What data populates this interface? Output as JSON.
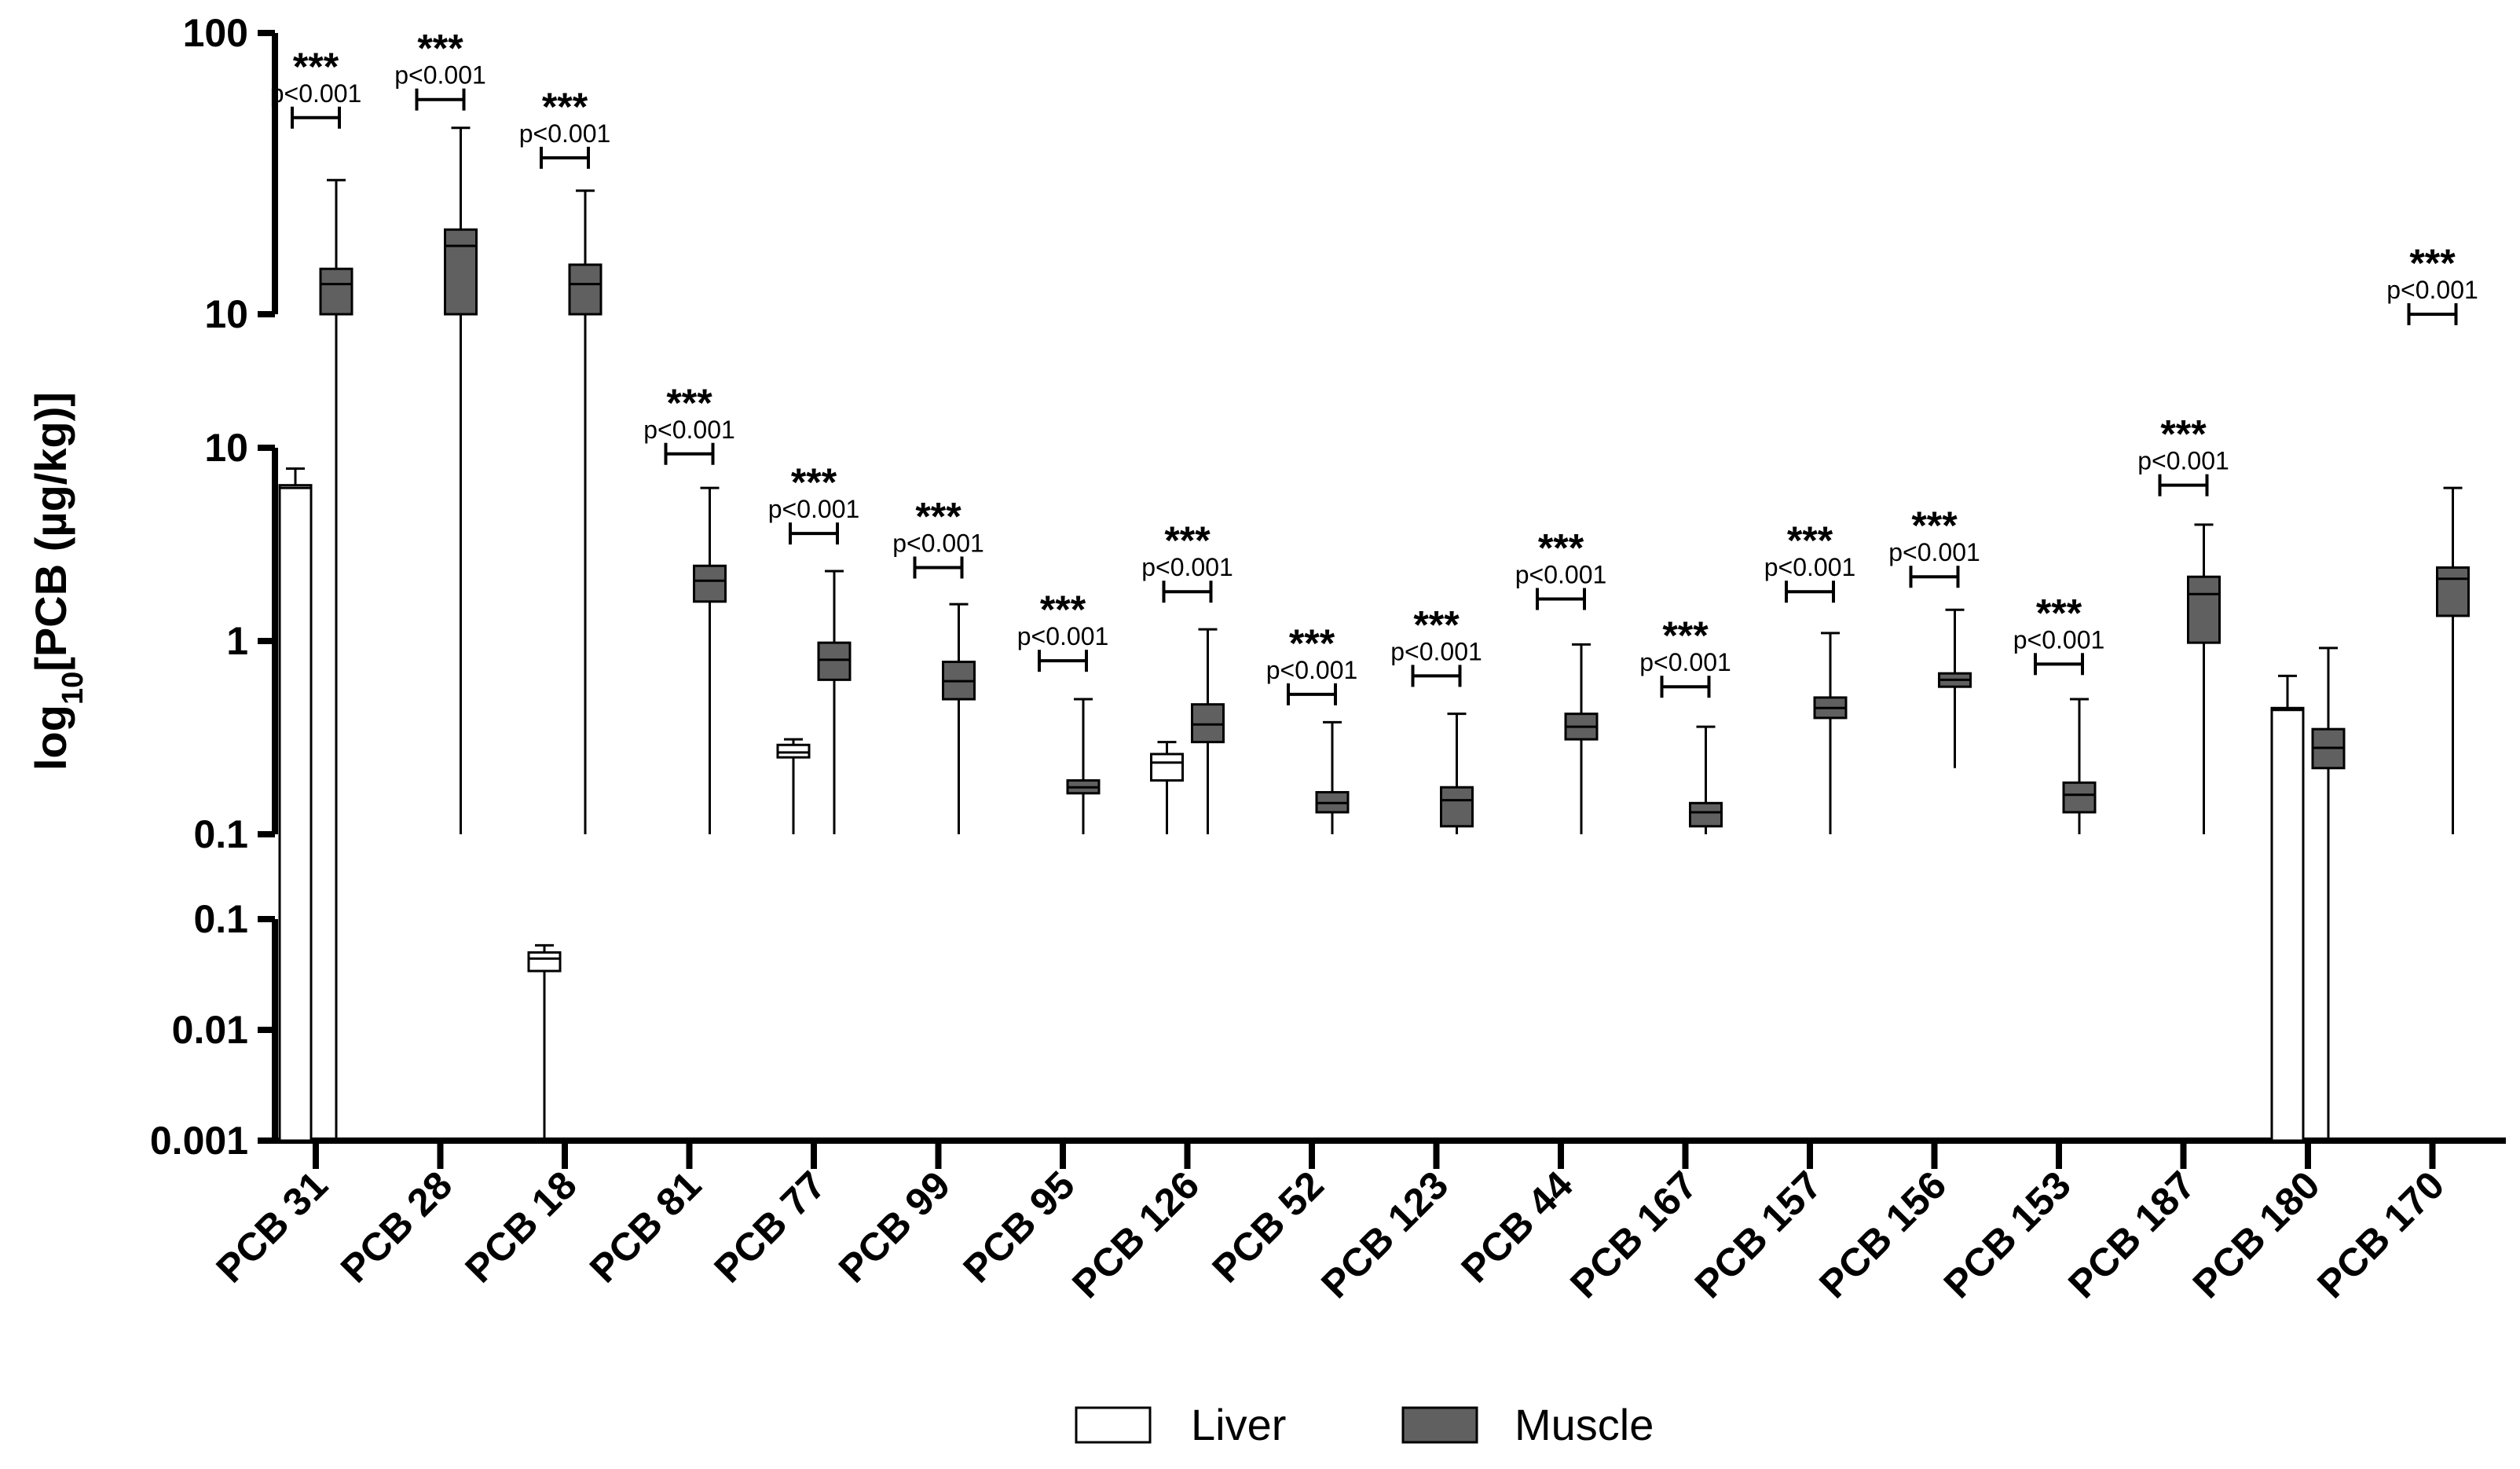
{
  "chart_data": {
    "type": "boxplot",
    "ylabel": "log10[PCB (µg/kg)]",
    "ylabel_main": "log",
    "ylabel_sub": "10",
    "ylabel_rest": "[PCB (µg/kg)]",
    "yscale": "log",
    "segments": [
      {
        "name": "upper",
        "range": [
          10,
          100
        ],
        "ticks": [
          "10",
          "100"
        ],
        "tick_values": [
          10,
          100
        ]
      },
      {
        "name": "middle",
        "range": [
          0.1,
          10
        ],
        "ticks": [
          "0.1",
          "1",
          "10"
        ],
        "tick_values": [
          0.1,
          1,
          10
        ]
      },
      {
        "name": "lower",
        "range": [
          0.001,
          0.1
        ],
        "ticks": [
          "0.001",
          "0.01",
          "0.1"
        ],
        "tick_values": [
          0.001,
          0.01,
          0.1
        ]
      }
    ],
    "categories": [
      "PCB 31",
      "PCB 28",
      "PCB 18",
      "PCB 81",
      "PCB 77",
      "PCB 99",
      "PCB 95",
      "PCB 126",
      "PCB 52",
      "PCB 123",
      "PCB 44",
      "PCB 167",
      "PCB 157",
      "PCB 156",
      "PCB 153",
      "PCB 187",
      "PCB 180",
      "PCB 170"
    ],
    "series": [
      {
        "name": "Liver",
        "color": "#ffffff",
        "boxes": [
          {
            "min": 0.001,
            "q1": 0.001,
            "median": 6.2,
            "q3": 6.4,
            "max": 7.8
          },
          {
            "min": 0.001,
            "q1": 0.001,
            "median": 0.001,
            "q3": 0.001,
            "max": 0.001
          },
          {
            "min": 0.001,
            "q1": 0.034,
            "median": 0.044,
            "q3": 0.05,
            "max": 0.058
          },
          {
            "min": 0.001,
            "q1": 0.001,
            "median": 0.001,
            "q3": 0.001,
            "max": 0.001
          },
          {
            "min": 0.1,
            "q1": 0.25,
            "median": 0.265,
            "q3": 0.29,
            "max": 0.31
          },
          {
            "min": 0.001,
            "q1": 0.001,
            "median": 0.001,
            "q3": 0.001,
            "max": 0.001
          },
          {
            "min": 0.001,
            "q1": 0.001,
            "median": 0.001,
            "q3": 0.001,
            "max": 0.001
          },
          {
            "min": 0.1,
            "q1": 0.19,
            "median": 0.235,
            "q3": 0.26,
            "max": 0.3
          },
          {
            "min": 0.001,
            "q1": 0.001,
            "median": 0.001,
            "q3": 0.001,
            "max": 0.001
          },
          {
            "min": 0.001,
            "q1": 0.001,
            "median": 0.001,
            "q3": 0.001,
            "max": 0.001
          },
          {
            "min": 0.001,
            "q1": 0.001,
            "median": 0.001,
            "q3": 0.001,
            "max": 0.001
          },
          {
            "min": 0.001,
            "q1": 0.001,
            "median": 0.001,
            "q3": 0.001,
            "max": 0.001
          },
          {
            "min": 0.001,
            "q1": 0.001,
            "median": 0.001,
            "q3": 0.001,
            "max": 0.001
          },
          {
            "min": 0.001,
            "q1": 0.001,
            "median": 0.001,
            "q3": 0.001,
            "max": 0.001
          },
          {
            "min": 0.001,
            "q1": 0.001,
            "median": 0.001,
            "q3": 0.001,
            "max": 0.001
          },
          {
            "min": 0.001,
            "q1": 0.001,
            "median": 0.001,
            "q3": 0.001,
            "max": 0.001
          },
          {
            "min": 0.001,
            "q1": 0.001,
            "median": 0.44,
            "q3": 0.45,
            "max": 0.66
          },
          {
            "min": 0.001,
            "q1": 0.001,
            "median": 0.001,
            "q3": 0.001,
            "max": 0.001
          }
        ]
      },
      {
        "name": "Muscle",
        "color": "#606060",
        "boxes": [
          {
            "min": 0.001,
            "q1": 10,
            "median": 12.8,
            "q3": 14.5,
            "max": 30
          },
          {
            "min": 0.1,
            "q1": 10,
            "median": 17.5,
            "q3": 20,
            "max": 46
          },
          {
            "min": 0.1,
            "q1": 10,
            "median": 12.8,
            "q3": 15,
            "max": 27.5
          },
          {
            "min": 0.1,
            "q1": 1.6,
            "median": 2.05,
            "q3": 2.45,
            "max": 6.2
          },
          {
            "min": 0.1,
            "q1": 0.63,
            "median": 0.8,
            "q3": 0.98,
            "max": 2.3
          },
          {
            "min": 0.1,
            "q1": 0.5,
            "median": 0.62,
            "q3": 0.78,
            "max": 1.55
          },
          {
            "min": 0.1,
            "q1": 0.163,
            "median": 0.175,
            "q3": 0.19,
            "max": 0.5
          },
          {
            "min": 0.1,
            "q1": 0.3,
            "median": 0.37,
            "q3": 0.47,
            "max": 1.15
          },
          {
            "min": 0.1,
            "q1": 0.13,
            "median": 0.145,
            "q3": 0.165,
            "max": 0.38
          },
          {
            "min": 0.1,
            "q1": 0.11,
            "median": 0.15,
            "q3": 0.175,
            "max": 0.42
          },
          {
            "min": 0.1,
            "q1": 0.31,
            "median": 0.36,
            "q3": 0.42,
            "max": 0.96
          },
          {
            "min": 0.1,
            "q1": 0.11,
            "median": 0.13,
            "q3": 0.145,
            "max": 0.36
          },
          {
            "min": 0.1,
            "q1": 0.4,
            "median": 0.45,
            "q3": 0.51,
            "max": 1.1
          },
          {
            "min": 0.22,
            "q1": 0.58,
            "median": 0.63,
            "q3": 0.68,
            "max": 1.45
          },
          {
            "min": 0.1,
            "q1": 0.13,
            "median": 0.16,
            "q3": 0.185,
            "max": 0.5
          },
          {
            "min": 0.1,
            "q1": 0.98,
            "median": 1.75,
            "q3": 2.15,
            "max": 4.0
          },
          {
            "min": 0.001,
            "q1": 0.22,
            "median": 0.28,
            "q3": 0.35,
            "max": 0.92
          },
          {
            "min": 0.1,
            "q1": 1.35,
            "median": 2.1,
            "q3": 2.4,
            "max": 6.2
          }
        ]
      }
    ],
    "annotations": [
      {
        "category": "PCB 31",
        "stars": "***",
        "p": "p<0.001",
        "y": 50
      },
      {
        "category": "PCB 28",
        "stars": "***",
        "p": "p<0.001",
        "y": 58
      },
      {
        "category": "PCB 18",
        "stars": "***",
        "p": "p<0.001",
        "y": 36
      },
      {
        "category": "PCB 81",
        "stars": "***",
        "p": "p<0.001",
        "y": 9.3
      },
      {
        "category": "PCB 77",
        "stars": "***",
        "p": "p<0.001",
        "y": 3.6
      },
      {
        "category": "PCB 99",
        "stars": "***",
        "p": "p<0.001",
        "y": 2.4
      },
      {
        "category": "PCB 95",
        "stars": "***",
        "p": "p<0.001",
        "y": 0.79
      },
      {
        "category": "PCB 126",
        "stars": "***",
        "p": "p<0.001",
        "y": 1.8
      },
      {
        "category": "PCB 52",
        "stars": "***",
        "p": "p<0.001",
        "y": 0.53
      },
      {
        "category": "PCB 123",
        "stars": "***",
        "p": "p<0.001",
        "y": 0.66
      },
      {
        "category": "PCB 44",
        "stars": "***",
        "p": "p<0.001",
        "y": 1.65
      },
      {
        "category": "PCB 167",
        "stars": "***",
        "p": "p<0.001",
        "y": 0.58
      },
      {
        "category": "PCB 157",
        "stars": "***",
        "p": "p<0.001",
        "y": 1.8
      },
      {
        "category": "PCB 156",
        "stars": "***",
        "p": "p<0.001",
        "y": 2.15
      },
      {
        "category": "PCB 153",
        "stars": "***",
        "p": "p<0.001",
        "y": 0.76
      },
      {
        "category": "PCB 187",
        "stars": "***",
        "p": "p<0.001",
        "y": 6.4
      },
      {
        "category": "PCB 170",
        "stars": "***",
        "p": "p<0.001",
        "y": 10
      }
    ],
    "legend": [
      "Liver",
      "Muscle"
    ],
    "legend_position": "bottom-center"
  }
}
